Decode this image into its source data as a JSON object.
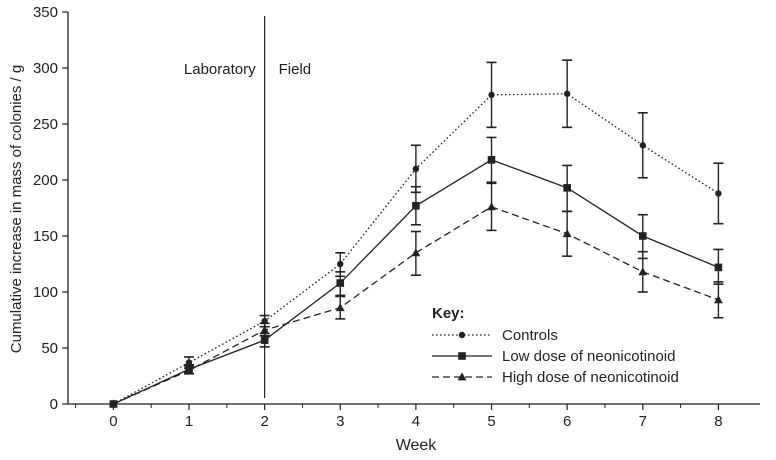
{
  "chart_data": {
    "type": "line",
    "xlabel": "Week",
    "ylabel": "Cumulative increase in mass of colonies / g",
    "xlim": [
      -0.6,
      8.55
    ],
    "ylim": [
      0,
      350
    ],
    "x_ticks": [
      0,
      1,
      2,
      3,
      4,
      5,
      6,
      7,
      8
    ],
    "y_ticks": [
      0,
      50,
      100,
      150,
      200,
      250,
      300,
      350
    ],
    "grid": false,
    "legend_title": "Key:",
    "legend_position": "bottom-right",
    "annotations": {
      "divider_x": 2,
      "left_label": "Laboratory",
      "right_label": "Field"
    },
    "series": [
      {
        "name": "Controls",
        "marker": "circle",
        "line_style": "dotted",
        "x": [
          0,
          1,
          2,
          3,
          4,
          5,
          6,
          7,
          8
        ],
        "y": [
          0,
          37,
          74,
          125,
          210,
          276,
          277,
          231,
          188
        ],
        "err_low": [
          0,
          32,
          69,
          114,
          189,
          247,
          247,
          202,
          161
        ],
        "err_high": [
          0,
          42,
          79,
          135,
          231,
          305,
          307,
          260,
          215
        ]
      },
      {
        "name": "Low dose of neonicotinoid",
        "marker": "square",
        "line_style": "solid",
        "x": [
          0,
          1,
          2,
          3,
          4,
          5,
          6,
          7,
          8
        ],
        "y": [
          0,
          31,
          57,
          108,
          177,
          218,
          193,
          150,
          122
        ],
        "err_low": [
          0,
          27,
          51,
          96,
          160,
          198,
          172,
          130,
          107
        ],
        "err_high": [
          0,
          35,
          63,
          118,
          194,
          238,
          213,
          169,
          138
        ]
      },
      {
        "name": "High dose of neonicotinoid",
        "marker": "triangle",
        "line_style": "dashed",
        "x": [
          0,
          1,
          2,
          3,
          4,
          5,
          6,
          7,
          8
        ],
        "y": [
          0,
          30,
          66,
          86,
          135,
          176,
          152,
          118,
          93
        ],
        "err_low": [
          0,
          27,
          61,
          76,
          115,
          155,
          132,
          100,
          77
        ],
        "err_high": [
          0,
          34,
          72,
          97,
          154,
          197,
          172,
          136,
          109
        ]
      }
    ]
  }
}
